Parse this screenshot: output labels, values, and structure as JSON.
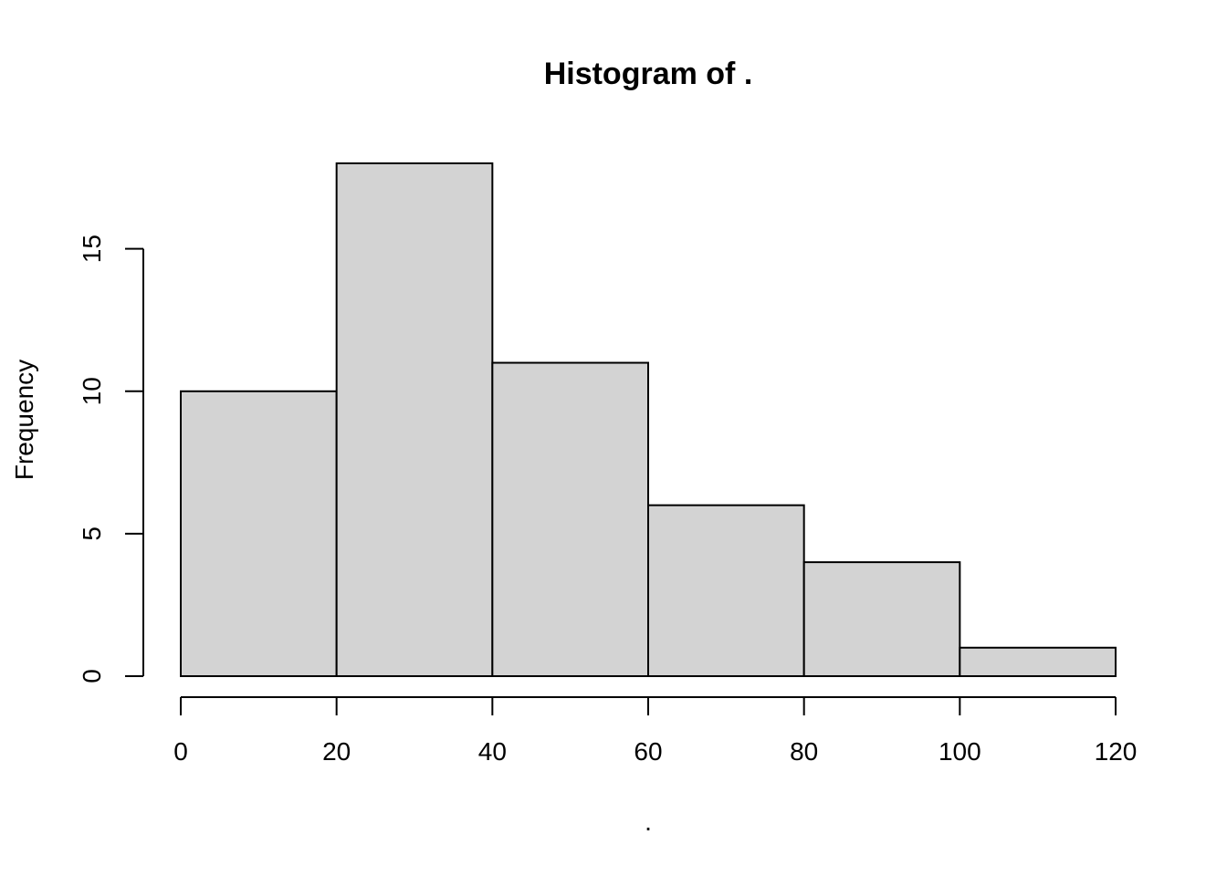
{
  "chart_data": {
    "type": "bar",
    "title": "Histogram of .",
    "xlabel": ".",
    "ylabel": "Frequency",
    "bins": [
      {
        "start": 0,
        "end": 20,
        "count": 10
      },
      {
        "start": 20,
        "end": 40,
        "count": 18
      },
      {
        "start": 40,
        "end": 60,
        "count": 11
      },
      {
        "start": 60,
        "end": 80,
        "count": 6
      },
      {
        "start": 80,
        "end": 100,
        "count": 4
      },
      {
        "start": 100,
        "end": 120,
        "count": 1
      }
    ],
    "xlim": [
      0,
      120
    ],
    "ylim": [
      0,
      18
    ],
    "x_ticks": [
      0,
      20,
      40,
      60,
      80,
      100,
      120
    ],
    "y_ticks": [
      0,
      5,
      10,
      15
    ],
    "bar_color": "#d3d3d3",
    "grid": false,
    "legend": "none"
  }
}
